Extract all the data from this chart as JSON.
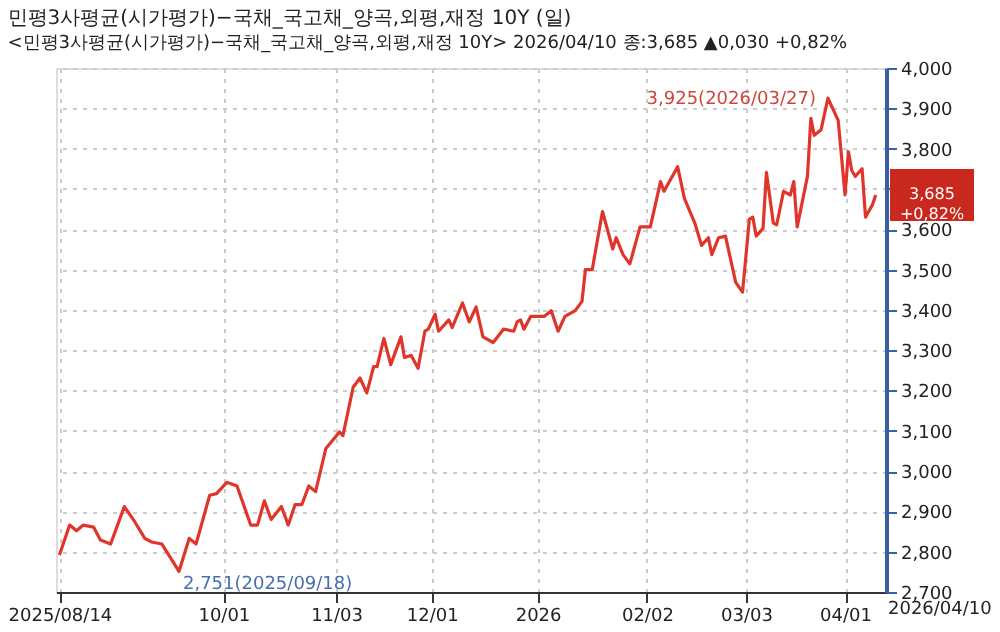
{
  "chart_data": {
    "type": "line",
    "title": "민평3사평균(시가평가)−국채_국고채_양곡,외평,재정 10Y (일)",
    "subtitle": "<민평3사평균(시가평가)−국채_국고채_양곡,외평,재정 10Y> 2026/04/10 종:3,685 ▲0,030 +0,82%",
    "x": [
      "2025-08-14",
      "2025-08-17",
      "2025-08-19",
      "2025-08-21",
      "2025-08-24",
      "2025-08-26",
      "2025-08-29",
      "2025-09-02",
      "2025-09-05",
      "2025-09-08",
      "2025-09-10",
      "2025-09-13",
      "2025-09-15",
      "2025-09-18",
      "2025-09-21",
      "2025-09-23",
      "2025-09-27",
      "2025-09-29",
      "2025-10-02",
      "2025-10-05",
      "2025-10-09",
      "2025-10-11",
      "2025-10-13",
      "2025-10-15",
      "2025-10-18",
      "2025-10-20",
      "2025-10-22",
      "2025-10-24",
      "2025-10-26",
      "2025-10-28",
      "2025-10-31",
      "2025-11-04",
      "2025-11-05",
      "2025-11-08",
      "2025-11-10",
      "2025-11-12",
      "2025-11-14",
      "2025-11-15",
      "2025-11-17",
      "2025-11-19",
      "2025-11-22",
      "2025-11-23",
      "2025-11-25",
      "2025-11-27",
      "2025-11-29",
      "2025-11-30",
      "2025-12-02",
      "2025-12-03",
      "2025-12-06",
      "2025-12-07",
      "2025-12-10",
      "2025-12-12",
      "2025-12-14",
      "2025-12-16",
      "2025-12-19",
      "2025-12-22",
      "2025-12-25",
      "2025-12-26",
      "2025-12-27",
      "2025-12-28",
      "2025-12-30",
      "2026-01-03",
      "2026-01-05",
      "2026-01-07",
      "2026-01-09",
      "2026-01-12",
      "2026-01-14",
      "2026-01-15",
      "2026-01-17",
      "2026-01-20",
      "2026-01-23",
      "2026-01-24",
      "2026-01-26",
      "2026-01-28",
      "2026-01-31",
      "2026-02-03",
      "2026-02-06",
      "2026-02-07",
      "2026-02-11",
      "2026-02-13",
      "2026-02-16",
      "2026-02-18",
      "2026-02-20",
      "2026-02-21",
      "2026-02-23",
      "2026-02-25",
      "2026-02-28",
      "2026-03-02",
      "2026-03-04",
      "2026-03-05",
      "2026-03-06",
      "2026-03-08",
      "2026-03-09",
      "2026-03-11",
      "2026-03-12",
      "2026-03-14",
      "2026-03-16",
      "2026-03-17",
      "2026-03-18",
      "2026-03-21",
      "2026-03-22",
      "2026-03-23",
      "2026-03-25",
      "2026-03-27",
      "2026-03-30",
      "2026-04-01",
      "2026-04-02",
      "2026-04-03",
      "2026-04-04",
      "2026-04-06",
      "2026-04-07",
      "2026-04-09",
      "2026-04-10"
    ],
    "series": [
      {
        "color": "#e0352b",
        "values": [
          2792,
          2866,
          2852,
          2866,
          2861,
          2829,
          2819,
          2912,
          2875,
          2833,
          2824,
          2819,
          2792,
          2751,
          2833,
          2819,
          2940,
          2944,
          2972,
          2963,
          2866,
          2866,
          2926,
          2880,
          2912,
          2866,
          2917,
          2917,
          2963,
          2949,
          3056,
          3097,
          3088,
          3208,
          3231,
          3194,
          3259,
          3259,
          3329,
          3264,
          3333,
          3282,
          3287,
          3255,
          3347,
          3352,
          3389,
          3347,
          3375,
          3356,
          3417,
          3370,
          3407,
          3333,
          3319,
          3352,
          3347,
          3370,
          3375,
          3352,
          3384,
          3384,
          3398,
          3347,
          3384,
          3398,
          3421,
          3500,
          3500,
          3644,
          3551,
          3579,
          3537,
          3514,
          3606,
          3606,
          3718,
          3694,
          3755,
          3676,
          3616,
          3560,
          3579,
          3537,
          3579,
          3583,
          3468,
          3444,
          3625,
          3630,
          3583,
          3602,
          3741,
          3616,
          3611,
          3694,
          3685,
          3718,
          3606,
          3731,
          3875,
          3833,
          3847,
          3925,
          3870,
          3685,
          3792,
          3745,
          3731,
          3750,
          3630,
          3660,
          3685
        ]
      }
    ],
    "xlim": [
      "2025-08-13",
      "2026-04-13"
    ],
    "xticks": [
      {
        "value": "2025-08-14",
        "label": "2025/08/14"
      },
      {
        "value": "2025-10-01",
        "label": "10/01"
      },
      {
        "value": "2025-11-03",
        "label": "11/03"
      },
      {
        "value": "2025-12-01",
        "label": "12/01"
      },
      {
        "value": "2026-01-01",
        "label": "2026"
      },
      {
        "value": "2026-02-02",
        "label": "02/02"
      },
      {
        "value": "2026-03-03",
        "label": "03/03"
      },
      {
        "value": "2026-04-01",
        "label": "04/01"
      }
    ],
    "ylim": [
      2700,
      4000
    ],
    "yticks": [
      {
        "value": 2700,
        "label": "2,700"
      },
      {
        "value": 2800,
        "label": "2,800"
      },
      {
        "value": 2900,
        "label": "2,900"
      },
      {
        "value": 3000,
        "label": "3,000"
      },
      {
        "value": 3100,
        "label": "3,100"
      },
      {
        "value": 3200,
        "label": "3,200"
      },
      {
        "value": 3300,
        "label": "3,300"
      },
      {
        "value": 3400,
        "label": "3,400"
      },
      {
        "value": 3500,
        "label": "3,500"
      },
      {
        "value": 3600,
        "label": "3,600"
      },
      {
        "value": 3700,
        "label": null
      },
      {
        "value": 3800,
        "label": "3,800"
      },
      {
        "value": 3900,
        "label": "3,900"
      },
      {
        "value": 4000,
        "label": "4,000"
      }
    ],
    "annotations": [
      {
        "text": "3,925(2026/03/27)",
        "x": "2026-03-27",
        "y": 3925
      },
      {
        "text": "2,751(2025/09/18)",
        "x": "2025-09-18",
        "y": 2751
      },
      {
        "text": "3,685 +0,82%",
        "x": "2026-04-10",
        "y": 3685
      },
      "2026/04/10"
    ],
    "grid": true,
    "marker": "none",
    "line_style": "solid"
  }
}
